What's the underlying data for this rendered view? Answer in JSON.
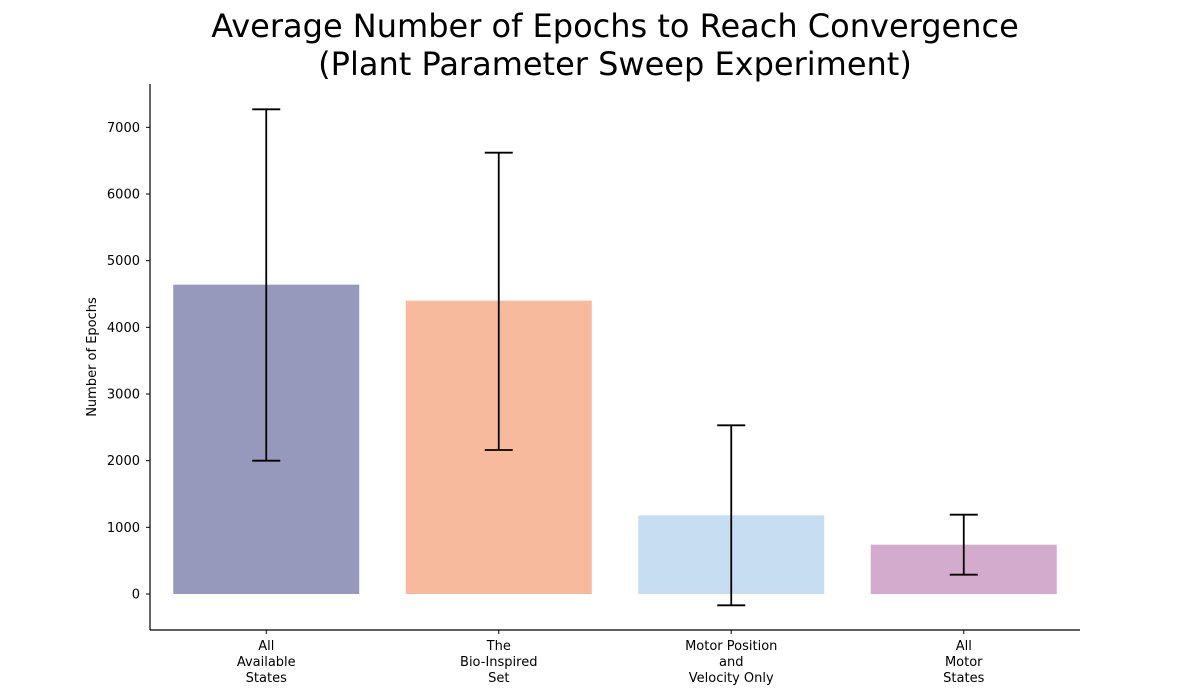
{
  "chart_data": {
    "type": "bar",
    "title_lines": [
      "Average Number of Epochs to Reach Convergence",
      "(Plant Parameter Sweep Experiment)"
    ],
    "ylabel": "Number of Epochs",
    "xlabel": "",
    "ylim": [
      -540,
      7650
    ],
    "yticks": [
      0,
      1000,
      2000,
      3000,
      4000,
      5000,
      6000,
      7000
    ],
    "categories": [
      [
        "All",
        "Available",
        "States"
      ],
      [
        "The",
        "Bio-Inspired",
        "Set"
      ],
      [
        "Motor Position",
        "and",
        "Velocity Only"
      ],
      [
        "All",
        "Motor",
        "States"
      ]
    ],
    "values": [
      4640,
      4400,
      1180,
      740
    ],
    "error_low": [
      2000,
      2160,
      -170,
      290
    ],
    "error_high": [
      7270,
      6620,
      2530,
      1190
    ],
    "colors": [
      "#9698bc",
      "#f8ba9c",
      "#c6ddf2",
      "#d3abcd"
    ],
    "grid": false,
    "legend": false
  }
}
